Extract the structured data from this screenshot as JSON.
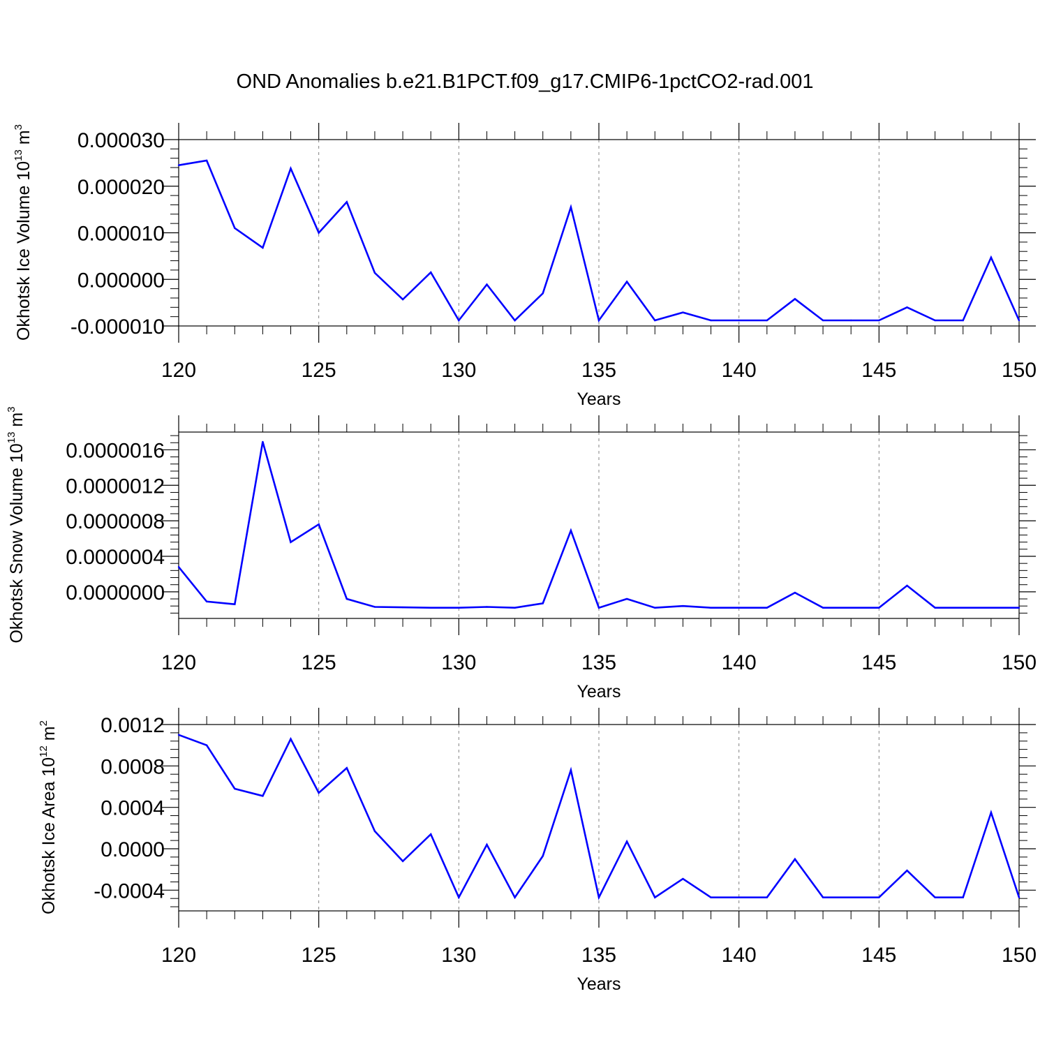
{
  "title": "OND Anomalies b.e21.B1PCT.f09_g17.CMIP6-1pctCO2-rad.001",
  "colors": {
    "line": "#0000ff",
    "axis": "#000000",
    "grid": "#808080",
    "background": "#ffffff"
  },
  "chart_data": [
    {
      "type": "line",
      "ylabel_main": "Okhotsk Ice Volume 10",
      "ylabel_exp": "13",
      "ylabel_unit": " m",
      "ylabel_unit_exp": "3",
      "xlabel": "Years",
      "xlim": [
        120,
        150
      ],
      "ylim": [
        -1e-05,
        3e-05
      ],
      "xticks": [
        120,
        125,
        130,
        135,
        140,
        145,
        150
      ],
      "xtick_labels": [
        "120",
        "125",
        "130",
        "135",
        "140",
        "145",
        "150"
      ],
      "yticks": [
        -1e-05,
        0.0,
        1e-05,
        2e-05,
        3e-05
      ],
      "ytick_labels": [
        "-0.000010",
        "0.000000",
        "0.000010",
        "0.000020",
        "0.000030"
      ],
      "grid": "vertical-dashed",
      "series": [
        {
          "name": "Okhotsk Ice Volume",
          "x": [
            120,
            121,
            122,
            123,
            124,
            125,
            126,
            127,
            128,
            129,
            130,
            131,
            132,
            133,
            134,
            135,
            136,
            137,
            138,
            139,
            140,
            141,
            142,
            143,
            144,
            145,
            146,
            147,
            148,
            149,
            150
          ],
          "values": [
            2.45e-05,
            2.55e-05,
            1.1e-05,
            6.8e-06,
            2.38e-05,
            1e-05,
            1.66e-05,
            1.4e-06,
            -4.3e-06,
            1.5e-06,
            -8.8e-06,
            -1.1e-06,
            -8.8e-06,
            -3e-06,
            1.55e-05,
            -8.8e-06,
            -5e-07,
            -8.8e-06,
            -7.1e-06,
            -8.8e-06,
            -8.8e-06,
            -8.8e-06,
            -4.2e-06,
            -8.8e-06,
            -8.8e-06,
            -8.8e-06,
            -6e-06,
            -8.8e-06,
            -8.8e-06,
            4.7e-06,
            -8.8e-06
          ]
        }
      ]
    },
    {
      "type": "line",
      "ylabel_main": "Okhotsk Snow Volume 10",
      "ylabel_exp": "13",
      "ylabel_unit": " m",
      "ylabel_unit_exp": "3",
      "xlabel": "Years",
      "xlim": [
        120,
        150
      ],
      "ylim": [
        -3e-07,
        1.8e-06
      ],
      "xticks": [
        120,
        125,
        130,
        135,
        140,
        145,
        150
      ],
      "xtick_labels": [
        "120",
        "125",
        "130",
        "135",
        "140",
        "145",
        "150"
      ],
      "yticks": [
        0.0,
        4e-07,
        8e-07,
        1.2e-06,
        1.6e-06
      ],
      "ytick_labels": [
        "0.0000000",
        "0.0000004",
        "0.0000008",
        "0.0000012",
        "0.0000016"
      ],
      "grid": "vertical-dashed",
      "series": [
        {
          "name": "Okhotsk Snow Volume",
          "x": [
            120,
            121,
            122,
            123,
            124,
            125,
            126,
            127,
            128,
            129,
            130,
            131,
            132,
            133,
            134,
            135,
            136,
            137,
            138,
            139,
            140,
            141,
            142,
            143,
            144,
            145,
            146,
            147,
            148,
            149,
            150
          ],
          "values": [
            2.8e-07,
            -1.1e-07,
            -1.4e-07,
            1.69e-06,
            5.6e-07,
            7.6e-07,
            -8e-08,
            -1.7e-07,
            -1.75e-07,
            -1.8e-07,
            -1.8e-07,
            -1.7e-07,
            -1.8e-07,
            -1.3e-07,
            6.9e-07,
            -1.8e-07,
            -8e-08,
            -1.8e-07,
            -1.6e-07,
            -1.8e-07,
            -1.8e-07,
            -1.8e-07,
            -1e-08,
            -1.8e-07,
            -1.8e-07,
            -1.8e-07,
            7e-08,
            -1.8e-07,
            -1.8e-07,
            -1.8e-07,
            -1.8e-07
          ]
        }
      ]
    },
    {
      "type": "line",
      "ylabel_main": "Okhotsk Ice Area 10",
      "ylabel_exp": "12",
      "ylabel_unit": " m",
      "ylabel_unit_exp": "2",
      "xlabel": "Years",
      "xlim": [
        120,
        150
      ],
      "ylim": [
        -0.0006,
        0.0012
      ],
      "xticks": [
        120,
        125,
        130,
        135,
        140,
        145,
        150
      ],
      "xtick_labels": [
        "120",
        "125",
        "130",
        "135",
        "140",
        "145",
        "150"
      ],
      "yticks": [
        -0.0004,
        0.0,
        0.0004,
        0.0008,
        0.0012
      ],
      "ytick_labels": [
        "-0.0004",
        "0.0000",
        "0.0004",
        "0.0008",
        "0.0012"
      ],
      "grid": "vertical-dashed",
      "series": [
        {
          "name": "Okhotsk Ice Area",
          "x": [
            120,
            121,
            122,
            123,
            124,
            125,
            126,
            127,
            128,
            129,
            130,
            131,
            132,
            133,
            134,
            135,
            136,
            137,
            138,
            139,
            140,
            141,
            142,
            143,
            144,
            145,
            146,
            147,
            148,
            149,
            150
          ],
          "values": [
            0.0011,
            0.001,
            0.00058,
            0.00051,
            0.00106,
            0.00054,
            0.00078,
            0.00017,
            -0.00012,
            0.00014,
            -0.00047,
            4e-05,
            -0.00047,
            -7e-05,
            0.00076,
            -0.00047,
            7e-05,
            -0.00047,
            -0.00029,
            -0.00047,
            -0.00047,
            -0.00047,
            -0.0001,
            -0.00047,
            -0.00047,
            -0.00047,
            -0.00021,
            -0.00047,
            -0.00047,
            0.00035,
            -0.00047
          ]
        }
      ]
    }
  ]
}
